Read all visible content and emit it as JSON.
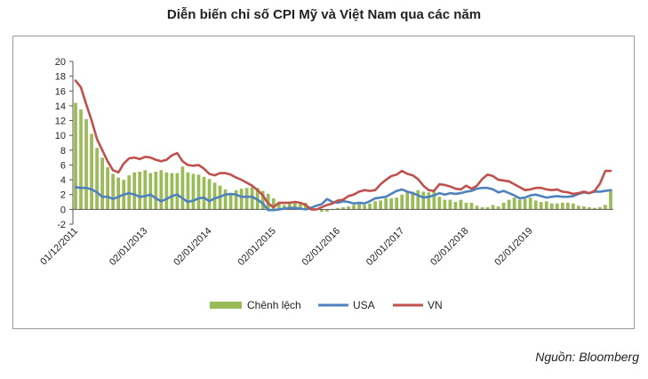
{
  "title": "Diễn biến chỉ số CPI Mỹ và Việt Nam qua các năm",
  "source": "Nguồn: Bloomberg",
  "colors": {
    "chenh_lech": "#9bbb59",
    "usa": "#4f81bd",
    "vn": "#c0504d",
    "axis": "#595959",
    "grid": "#bfbfbf"
  },
  "chart_data": {
    "type": "line",
    "title": "Diễn biến chỉ số CPI Mỹ và Việt Nam qua các năm",
    "ylim": [
      -2,
      20
    ],
    "yticks": [
      "20",
      "18",
      "16",
      "14",
      "12",
      "10",
      "8",
      "6",
      "4",
      "2",
      "0",
      "-2"
    ],
    "x_tick_labels": [
      {
        "label": "01/12/2011",
        "index": 0
      },
      {
        "label": "02/01/2013",
        "index": 13
      },
      {
        "label": "02/01/2014",
        "index": 25
      },
      {
        "label": "02/01/2015",
        "index": 37
      },
      {
        "label": "02/01/2016",
        "index": 49
      },
      {
        "label": "02/01/2017",
        "index": 61
      },
      {
        "label": "02/01/2018",
        "index": 73
      },
      {
        "label": "02/01/2019",
        "index": 85
      }
    ],
    "legend_position": "bottom",
    "series": [
      {
        "name": "Chênh lệch",
        "kind": "bar",
        "values": [
          14.4,
          13.5,
          12.2,
          10.2,
          8.3,
          7.0,
          5.7,
          4.8,
          4.3,
          4.0,
          4.6,
          5.0,
          5.1,
          5.3,
          4.9,
          5.1,
          5.3,
          5.0,
          4.9,
          4.9,
          5.8,
          5.0,
          4.8,
          4.7,
          4.4,
          4.1,
          3.6,
          3.2,
          2.7,
          2.2,
          2.6,
          2.8,
          2.9,
          3.0,
          2.9,
          2.5,
          2.1,
          1.5,
          0.8,
          0.6,
          0.8,
          1.0,
          1.0,
          0.9,
          0.4,
          -0.1,
          -0.3,
          -0.3,
          -0.1,
          0.2,
          0.3,
          0.4,
          0.6,
          0.8,
          0.6,
          0.8,
          1.1,
          1.2,
          1.5,
          1.5,
          1.6,
          2.0,
          2.4,
          2.4,
          2.6,
          2.4,
          2.3,
          2.4,
          1.7,
          1.3,
          1.3,
          1.0,
          1.3,
          0.9,
          0.9,
          0.5,
          0.3,
          0.3,
          0.6,
          0.4,
          0.9,
          1.3,
          1.6,
          1.3,
          1.4,
          1.6,
          1.2,
          1.0,
          1.1,
          0.8,
          0.8,
          0.9,
          0.9,
          0.8,
          0.5,
          0.4,
          0.3,
          0.2,
          0.3,
          0.6,
          2.7
        ]
      },
      {
        "name": "USA",
        "kind": "line",
        "values": [
          3.0,
          2.9,
          2.9,
          2.7,
          2.3,
          1.7,
          1.7,
          1.4,
          1.7,
          2.0,
          2.2,
          2.0,
          1.7,
          1.8,
          2.0,
          1.5,
          1.1,
          1.4,
          1.8,
          2.0,
          1.5,
          1.0,
          1.2,
          1.5,
          1.6,
          1.1,
          1.5,
          1.7,
          2.0,
          2.1,
          2.0,
          1.7,
          1.7,
          1.7,
          1.3,
          0.8,
          -0.1,
          -0.1,
          0.0,
          0.1,
          0.2,
          0.2,
          0.1,
          0.0,
          0.2,
          0.5,
          0.7,
          1.4,
          1.0,
          0.9,
          1.1,
          1.0,
          0.8,
          0.9,
          0.8,
          1.1,
          1.5,
          1.6,
          1.7,
          2.1,
          2.5,
          2.7,
          2.4,
          2.2,
          1.9,
          1.6,
          1.7,
          1.9,
          2.2,
          2.0,
          2.2,
          2.1,
          2.2,
          2.4,
          2.5,
          2.8,
          2.9,
          2.9,
          2.7,
          2.3,
          2.5,
          2.2,
          1.9,
          1.5,
          1.6,
          1.9,
          2.0,
          1.8,
          1.6,
          1.7,
          1.8,
          1.7,
          1.7,
          1.8,
          2.1,
          2.3,
          2.2,
          2.4,
          2.4,
          2.5,
          2.6
        ]
      },
      {
        "name": "VN",
        "kind": "line",
        "values": [
          17.4,
          16.5,
          14.2,
          12.0,
          9.5,
          8.0,
          6.5,
          5.3,
          5.0,
          6.2,
          6.9,
          7.0,
          6.8,
          7.1,
          7.0,
          6.7,
          6.5,
          6.7,
          7.3,
          7.6,
          6.5,
          6.0,
          5.9,
          6.0,
          5.5,
          4.8,
          4.6,
          4.9,
          4.9,
          4.7,
          4.3,
          4.0,
          3.6,
          3.2,
          2.6,
          1.9,
          0.8,
          0.3,
          0.9,
          0.9,
          0.9,
          1.0,
          0.9,
          0.6,
          0.0,
          0.0,
          0.3,
          0.6,
          0.8,
          1.2,
          1.3,
          1.8,
          2.0,
          2.4,
          2.6,
          2.5,
          2.6,
          3.4,
          4.0,
          4.5,
          4.7,
          5.2,
          4.8,
          4.6,
          4.1,
          3.2,
          2.6,
          2.5,
          3.4,
          3.3,
          3.1,
          2.8,
          2.7,
          3.2,
          2.8,
          3.2,
          4.1,
          4.7,
          4.5,
          4.0,
          3.9,
          3.8,
          3.4,
          3.0,
          2.6,
          2.7,
          2.9,
          2.9,
          2.7,
          2.6,
          2.7,
          2.4,
          2.3,
          2.1,
          2.2,
          2.4,
          2.2,
          2.5,
          3.5,
          5.2,
          5.2
        ]
      }
    ]
  }
}
